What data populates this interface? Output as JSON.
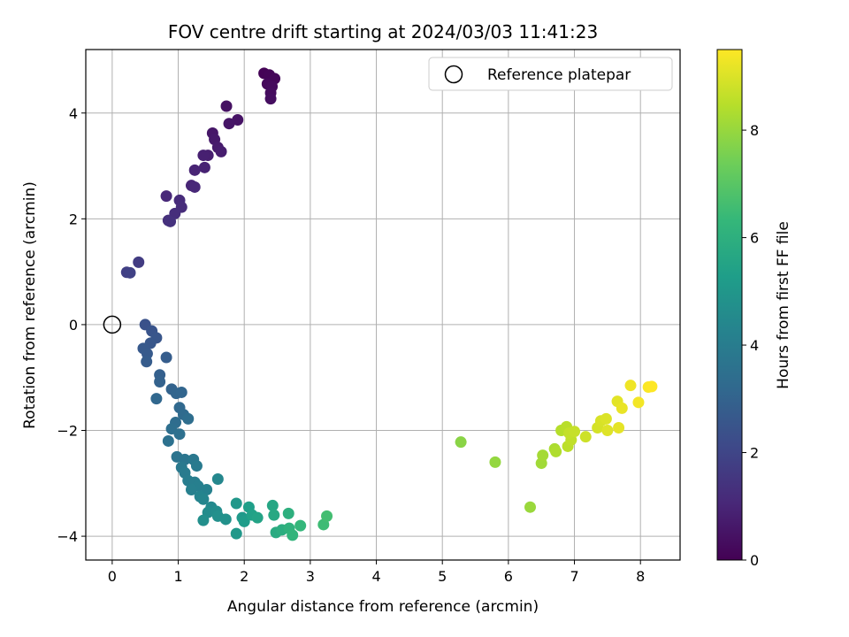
{
  "chart_data": {
    "type": "scatter",
    "title": "FOV centre drift starting at 2024/03/03 11:41:23",
    "xlabel": "Angular distance from reference (arcmin)",
    "ylabel": "Rotation from reference (arcmin)",
    "xlim": [
      -0.4,
      8.6
    ],
    "ylim": [
      -4.45,
      5.2
    ],
    "xticks": [
      0,
      1,
      2,
      3,
      4,
      5,
      6,
      7,
      8
    ],
    "yticks": [
      -4,
      -2,
      0,
      2,
      4
    ],
    "grid": true,
    "legend": {
      "placement": "top-right",
      "entries": [
        "Reference platepar"
      ]
    },
    "reference_point": {
      "x": 0,
      "y": 0
    },
    "colorbar": {
      "label": "Hours from first FF file",
      "colormap": "viridis",
      "range": [
        0,
        9.5
      ],
      "ticks": [
        0,
        2,
        4,
        6,
        8
      ]
    },
    "colormap_stops": [
      "#440154",
      "#482878",
      "#3e4989",
      "#31688e",
      "#26828e",
      "#1f9e89",
      "#35b779",
      "#6ece58",
      "#b5de2b",
      "#fde725"
    ],
    "points": [
      {
        "x": 2.3,
        "y": 4.75,
        "h": 0.05
      },
      {
        "x": 2.38,
        "y": 4.72,
        "h": 0.1
      },
      {
        "x": 2.46,
        "y": 4.65,
        "h": 0.15
      },
      {
        "x": 2.35,
        "y": 4.55,
        "h": 0.2
      },
      {
        "x": 2.42,
        "y": 4.5,
        "h": 0.25
      },
      {
        "x": 2.4,
        "y": 4.38,
        "h": 0.3
      },
      {
        "x": 2.4,
        "y": 4.27,
        "h": 0.35
      },
      {
        "x": 1.73,
        "y": 4.13,
        "h": 0.45
      },
      {
        "x": 1.9,
        "y": 3.87,
        "h": 0.5
      },
      {
        "x": 1.77,
        "y": 3.8,
        "h": 0.55
      },
      {
        "x": 1.52,
        "y": 3.62,
        "h": 0.6
      },
      {
        "x": 1.55,
        "y": 3.5,
        "h": 0.65
      },
      {
        "x": 1.6,
        "y": 3.35,
        "h": 0.7
      },
      {
        "x": 1.65,
        "y": 3.27,
        "h": 0.75
      },
      {
        "x": 1.45,
        "y": 3.2,
        "h": 0.8
      },
      {
        "x": 1.38,
        "y": 3.2,
        "h": 0.85
      },
      {
        "x": 1.4,
        "y": 2.97,
        "h": 0.9
      },
      {
        "x": 1.25,
        "y": 2.92,
        "h": 0.95
      },
      {
        "x": 1.2,
        "y": 2.63,
        "h": 1.0
      },
      {
        "x": 1.25,
        "y": 2.6,
        "h": 1.05
      },
      {
        "x": 0.82,
        "y": 2.43,
        "h": 1.1
      },
      {
        "x": 1.02,
        "y": 2.35,
        "h": 1.15
      },
      {
        "x": 1.05,
        "y": 2.22,
        "h": 1.2
      },
      {
        "x": 0.95,
        "y": 2.1,
        "h": 1.25
      },
      {
        "x": 0.85,
        "y": 1.97,
        "h": 1.3
      },
      {
        "x": 0.88,
        "y": 1.95,
        "h": 1.35
      },
      {
        "x": 0.4,
        "y": 1.18,
        "h": 1.7
      },
      {
        "x": 0.22,
        "y": 0.99,
        "h": 1.8
      },
      {
        "x": 0.27,
        "y": 0.98,
        "h": 1.85
      },
      {
        "x": 0.5,
        "y": 0.0,
        "h": 2.4
      },
      {
        "x": 0.6,
        "y": -0.12,
        "h": 2.5
      },
      {
        "x": 0.67,
        "y": -0.25,
        "h": 2.55
      },
      {
        "x": 0.58,
        "y": -0.35,
        "h": 2.6
      },
      {
        "x": 0.47,
        "y": -0.45,
        "h": 2.65
      },
      {
        "x": 0.53,
        "y": -0.55,
        "h": 2.7
      },
      {
        "x": 0.52,
        "y": -0.7,
        "h": 2.75
      },
      {
        "x": 0.82,
        "y": -0.62,
        "h": 2.8
      },
      {
        "x": 0.72,
        "y": -0.95,
        "h": 2.9
      },
      {
        "x": 0.72,
        "y": -1.08,
        "h": 2.95
      },
      {
        "x": 0.9,
        "y": -1.22,
        "h": 3.0
      },
      {
        "x": 0.97,
        "y": -1.3,
        "h": 3.05
      },
      {
        "x": 1.05,
        "y": -1.28,
        "h": 3.1
      },
      {
        "x": 0.67,
        "y": -1.4,
        "h": 3.15
      },
      {
        "x": 1.02,
        "y": -1.57,
        "h": 3.2
      },
      {
        "x": 1.08,
        "y": -1.7,
        "h": 3.3
      },
      {
        "x": 0.96,
        "y": -1.85,
        "h": 3.35
      },
      {
        "x": 1.15,
        "y": -1.78,
        "h": 3.4
      },
      {
        "x": 0.9,
        "y": -1.97,
        "h": 3.45
      },
      {
        "x": 1.02,
        "y": -2.07,
        "h": 3.5
      },
      {
        "x": 0.85,
        "y": -2.2,
        "h": 3.55
      },
      {
        "x": 0.98,
        "y": -2.5,
        "h": 3.65
      },
      {
        "x": 1.1,
        "y": -2.55,
        "h": 3.7
      },
      {
        "x": 1.23,
        "y": -2.55,
        "h": 3.8
      },
      {
        "x": 1.05,
        "y": -2.7,
        "h": 3.85
      },
      {
        "x": 1.28,
        "y": -2.67,
        "h": 3.9
      },
      {
        "x": 1.1,
        "y": -2.8,
        "h": 3.95
      },
      {
        "x": 1.15,
        "y": -2.95,
        "h": 4.0
      },
      {
        "x": 1.25,
        "y": -2.98,
        "h": 4.05
      },
      {
        "x": 1.3,
        "y": -3.05,
        "h": 4.1
      },
      {
        "x": 1.2,
        "y": -3.12,
        "h": 4.15
      },
      {
        "x": 1.43,
        "y": -3.12,
        "h": 4.2
      },
      {
        "x": 1.33,
        "y": -3.25,
        "h": 4.3
      },
      {
        "x": 1.38,
        "y": -3.3,
        "h": 4.35
      },
      {
        "x": 1.6,
        "y": -2.92,
        "h": 4.4
      },
      {
        "x": 1.5,
        "y": -3.45,
        "h": 4.5
      },
      {
        "x": 1.45,
        "y": -3.55,
        "h": 4.6
      },
      {
        "x": 1.58,
        "y": -3.53,
        "h": 4.65
      },
      {
        "x": 1.38,
        "y": -3.7,
        "h": 4.7
      },
      {
        "x": 1.6,
        "y": -3.62,
        "h": 4.75
      },
      {
        "x": 1.72,
        "y": -3.68,
        "h": 4.8
      },
      {
        "x": 1.88,
        "y": -3.38,
        "h": 5.0
      },
      {
        "x": 1.88,
        "y": -3.95,
        "h": 5.05
      },
      {
        "x": 1.97,
        "y": -3.65,
        "h": 5.1
      },
      {
        "x": 2.0,
        "y": -3.72,
        "h": 5.2
      },
      {
        "x": 2.07,
        "y": -3.45,
        "h": 5.3
      },
      {
        "x": 2.12,
        "y": -3.6,
        "h": 5.4
      },
      {
        "x": 2.2,
        "y": -3.65,
        "h": 5.5
      },
      {
        "x": 2.43,
        "y": -3.42,
        "h": 5.6
      },
      {
        "x": 2.45,
        "y": -3.6,
        "h": 5.7
      },
      {
        "x": 2.48,
        "y": -3.93,
        "h": 5.8
      },
      {
        "x": 2.57,
        "y": -3.88,
        "h": 5.9
      },
      {
        "x": 2.67,
        "y": -3.57,
        "h": 6.0
      },
      {
        "x": 2.68,
        "y": -3.85,
        "h": 6.1
      },
      {
        "x": 2.73,
        "y": -3.98,
        "h": 6.2
      },
      {
        "x": 2.85,
        "y": -3.8,
        "h": 6.3
      },
      {
        "x": 3.2,
        "y": -3.78,
        "h": 6.5
      },
      {
        "x": 3.25,
        "y": -3.62,
        "h": 6.6
      },
      {
        "x": 5.28,
        "y": -2.22,
        "h": 7.8
      },
      {
        "x": 5.8,
        "y": -2.6,
        "h": 7.95
      },
      {
        "x": 6.33,
        "y": -3.45,
        "h": 8.05
      },
      {
        "x": 6.5,
        "y": -2.62,
        "h": 8.15
      },
      {
        "x": 6.52,
        "y": -2.47,
        "h": 8.2
      },
      {
        "x": 6.7,
        "y": -2.35,
        "h": 8.3
      },
      {
        "x": 6.72,
        "y": -2.4,
        "h": 8.35
      },
      {
        "x": 6.8,
        "y": -2.0,
        "h": 8.45
      },
      {
        "x": 6.88,
        "y": -1.93,
        "h": 8.5
      },
      {
        "x": 6.9,
        "y": -2.3,
        "h": 8.55
      },
      {
        "x": 6.95,
        "y": -2.18,
        "h": 8.6
      },
      {
        "x": 6.92,
        "y": -2.05,
        "h": 8.65
      },
      {
        "x": 7.0,
        "y": -2.02,
        "h": 8.7
      },
      {
        "x": 7.17,
        "y": -2.12,
        "h": 8.8
      },
      {
        "x": 7.35,
        "y": -1.95,
        "h": 8.9
      },
      {
        "x": 7.4,
        "y": -1.82,
        "h": 8.95
      },
      {
        "x": 7.48,
        "y": -1.78,
        "h": 9.0
      },
      {
        "x": 7.5,
        "y": -2.0,
        "h": 9.05
      },
      {
        "x": 7.65,
        "y": -1.45,
        "h": 9.1
      },
      {
        "x": 7.67,
        "y": -1.95,
        "h": 9.15
      },
      {
        "x": 7.72,
        "y": -1.58,
        "h": 9.2
      },
      {
        "x": 7.85,
        "y": -1.15,
        "h": 9.3
      },
      {
        "x": 7.97,
        "y": -1.47,
        "h": 9.35
      },
      {
        "x": 8.12,
        "y": -1.18,
        "h": 9.45
      },
      {
        "x": 8.17,
        "y": -1.17,
        "h": 9.5
      }
    ]
  }
}
